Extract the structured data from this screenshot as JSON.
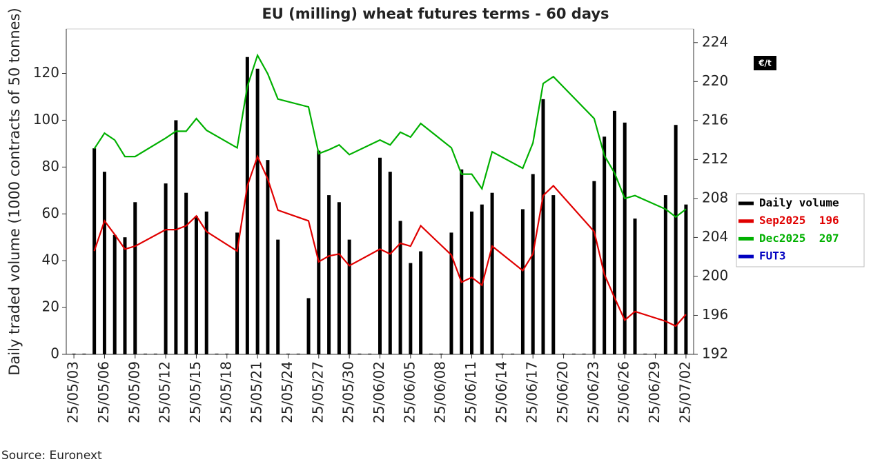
{
  "chart_data": {
    "type": "bar",
    "title": "EU (milling) wheat futures terms - 60 days",
    "y_label": "Daily traded volume (1000 contracts of 50 tonnes)",
    "y2_unit": "€/t",
    "source": "Source: Euronext",
    "x": [
      "25/05/03",
      "25/05/04",
      "25/05/05",
      "25/05/06",
      "25/05/07",
      "25/05/08",
      "25/05/09",
      "25/05/10",
      "25/05/11",
      "25/05/12",
      "25/05/13",
      "25/05/14",
      "25/05/15",
      "25/05/16",
      "25/05/17",
      "25/05/18",
      "25/05/19",
      "25/05/20",
      "25/05/21",
      "25/05/22",
      "25/05/23",
      "25/05/24",
      "25/05/25",
      "25/05/26",
      "25/05/27",
      "25/05/28",
      "25/05/29",
      "25/05/30",
      "25/05/31",
      "25/06/01",
      "25/06/02",
      "25/06/03",
      "25/06/04",
      "25/06/05",
      "25/06/06",
      "25/06/07",
      "25/06/08",
      "25/06/09",
      "25/06/10",
      "25/06/11",
      "25/06/12",
      "25/06/13",
      "25/06/14",
      "25/06/15",
      "25/06/16",
      "25/06/17",
      "25/06/18",
      "25/06/19",
      "25/06/20",
      "25/06/21",
      "25/06/22",
      "25/06/23",
      "25/06/24",
      "25/06/25",
      "25/06/26",
      "25/06/27",
      "25/06/28",
      "25/06/29",
      "25/06/30",
      "25/07/01",
      "25/07/02"
    ],
    "values": [
      0,
      0,
      88,
      78,
      51,
      50,
      65,
      0,
      0,
      73,
      100,
      69,
      59,
      61,
      0,
      0,
      52,
      127,
      122,
      83,
      49,
      0,
      0,
      24,
      87,
      68,
      65,
      49,
      0,
      0,
      84,
      78,
      57,
      39,
      44,
      0,
      0,
      52,
      79,
      61,
      64,
      69,
      0,
      0,
      62,
      77,
      109,
      68,
      0,
      0,
      0,
      74,
      93,
      104,
      99,
      58,
      0,
      0,
      68,
      98,
      64
    ],
    "color": "#000000",
    "xlim": [
      "25/05/03",
      "25/07/02"
    ],
    "xticks": [
      "25/05/03",
      "25/05/06",
      "25/05/09",
      "25/05/12",
      "25/05/15",
      "25/05/18",
      "25/05/21",
      "25/05/24",
      "25/05/27",
      "25/05/30",
      "25/06/02",
      "25/06/05",
      "25/06/08",
      "25/06/11",
      "25/06/14",
      "25/06/17",
      "25/06/20",
      "25/06/23",
      "25/06/26",
      "25/06/29",
      "25/07/02"
    ],
    "ylim": [
      0,
      139
    ],
    "yticks": [
      0,
      20,
      40,
      60,
      80,
      100,
      120
    ],
    "y2lim": [
      192,
      225.4
    ],
    "y2ticks": [
      192,
      196,
      200,
      204,
      208,
      212,
      216,
      220,
      224
    ],
    "legend_labels": [
      "Daily volume",
      "Sep2025  196",
      "Dec2025  207",
      "FUT3"
    ],
    "legend_colors": [
      "#000000",
      "#e00000",
      "#00b000",
      "#0000c0"
    ],
    "series": [
      {
        "name": "Sep2025",
        "color": "#e00000",
        "axis": "y2",
        "x": [
          "25/05/05",
          "25/05/06",
          "25/05/07",
          "25/05/08",
          "25/05/09",
          "25/05/12",
          "25/05/13",
          "25/05/14",
          "25/05/15",
          "25/05/16",
          "25/05/19",
          "25/05/20",
          "25/05/21",
          "25/05/22",
          "25/05/23",
          "25/05/26",
          "25/05/27",
          "25/05/28",
          "25/05/29",
          "25/05/30",
          "25/06/02",
          "25/06/03",
          "25/06/04",
          "25/06/05",
          "25/06/06",
          "25/06/09",
          "25/06/10",
          "25/06/11",
          "25/06/12",
          "25/06/13",
          "25/06/16",
          "25/06/17",
          "25/06/18",
          "25/06/19",
          "25/06/23",
          "25/06/24",
          "25/06/25",
          "25/06/26",
          "25/06/27",
          "25/06/30",
          "25/07/01",
          "25/07/02"
        ],
        "values": [
          202.6,
          205.7,
          204.3,
          202.8,
          203.1,
          204.8,
          204.8,
          205.2,
          206.2,
          204.6,
          202.6,
          209.3,
          212.3,
          210.0,
          206.8,
          205.7,
          201.5,
          202.1,
          202.3,
          201.1,
          202.8,
          202.3,
          203.4,
          203.1,
          205.2,
          202.2,
          199.4,
          199.9,
          199.1,
          203.1,
          200.6,
          202.3,
          208.3,
          209.3,
          204.6,
          200.2,
          197.8,
          195.5,
          196.4,
          195.4,
          194.9,
          196.1
        ]
      },
      {
        "name": "Dec2025",
        "color": "#00b000",
        "axis": "y2",
        "x": [
          "25/05/05",
          "25/05/06",
          "25/05/07",
          "25/05/08",
          "25/05/09",
          "25/05/12",
          "25/05/13",
          "25/05/14",
          "25/05/15",
          "25/05/16",
          "25/05/19",
          "25/05/20",
          "25/05/21",
          "25/05/22",
          "25/05/23",
          "25/05/26",
          "25/05/27",
          "25/05/28",
          "25/05/29",
          "25/05/30",
          "25/06/02",
          "25/06/03",
          "25/06/04",
          "25/06/05",
          "25/06/06",
          "25/06/09",
          "25/06/10",
          "25/06/11",
          "25/06/12",
          "25/06/13",
          "25/06/16",
          "25/06/17",
          "25/06/18",
          "25/06/19",
          "25/06/23",
          "25/06/24",
          "25/06/25",
          "25/06/26",
          "25/06/27",
          "25/06/30",
          "25/07/01",
          "25/07/02"
        ],
        "values": [
          213.1,
          214.7,
          214.0,
          212.3,
          212.3,
          214.2,
          214.9,
          214.9,
          216.2,
          215.0,
          213.2,
          219.5,
          222.7,
          220.8,
          218.2,
          217.4,
          212.6,
          213.0,
          213.5,
          212.5,
          214.0,
          213.5,
          214.8,
          214.3,
          215.7,
          213.2,
          210.5,
          210.5,
          209.0,
          212.8,
          211.1,
          213.7,
          219.8,
          220.5,
          216.2,
          212.4,
          210.6,
          208.0,
          208.3,
          206.9,
          206.1,
          206.9
        ]
      }
    ]
  }
}
